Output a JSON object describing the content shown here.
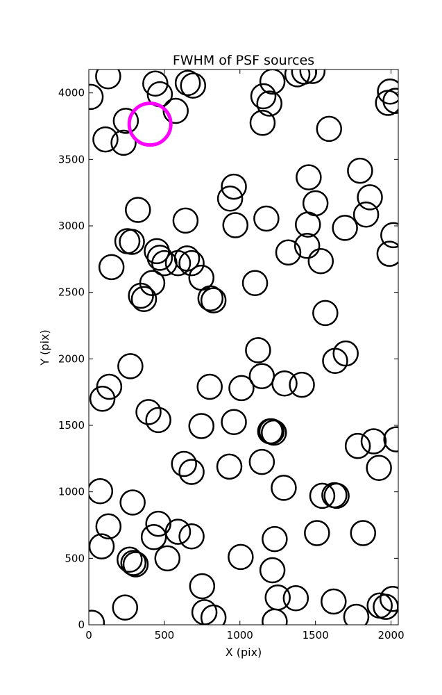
{
  "chart_data": {
    "type": "scatter",
    "title": "FWHM of PSF sources",
    "xlabel": "X (pix)",
    "ylabel": "Y (pix)",
    "xlim": [
      0,
      2048
    ],
    "ylim": [
      0,
      4176
    ],
    "xticks": [
      0,
      500,
      1000,
      1500,
      2000
    ],
    "xtick_labels": [
      "0",
      "500",
      "1000",
      "1500",
      "2000"
    ],
    "yticks": [
      0,
      500,
      1000,
      1500,
      2000,
      2500,
      3000,
      3500,
      4000
    ],
    "ytick_labels": [
      "0",
      "500",
      "1000",
      "1500",
      "2000",
      "2500",
      "3000",
      "3500",
      "4000"
    ],
    "grid": false,
    "marker": "open-circle",
    "series": [
      {
        "color": "#000000",
        "points": [
          [
            12,
            3970
          ],
          [
            128,
            4125
          ],
          [
            440,
            4070
          ],
          [
            470,
            3990
          ],
          [
            655,
            4075
          ],
          [
            690,
            4055
          ],
          [
            1380,
            4140
          ],
          [
            1155,
            3975
          ],
          [
            1215,
            4085
          ],
          [
            1195,
            3920
          ],
          [
            1150,
            3775
          ],
          [
            1425,
            4160
          ],
          [
            1480,
            4165
          ],
          [
            1993,
            4010
          ],
          [
            1980,
            3925
          ],
          [
            2030,
            3940
          ],
          [
            575,
            3865
          ],
          [
            245,
            3790
          ],
          [
            110,
            3650
          ],
          [
            230,
            3625
          ],
          [
            1590,
            3730
          ],
          [
            1795,
            3415
          ],
          [
            960,
            3295
          ],
          [
            935,
            3205
          ],
          [
            1500,
            3170
          ],
          [
            1455,
            3365
          ],
          [
            1860,
            3215
          ],
          [
            1835,
            3085
          ],
          [
            325,
            3120
          ],
          [
            640,
            3040
          ],
          [
            970,
            3005
          ],
          [
            1175,
            3055
          ],
          [
            1450,
            3010
          ],
          [
            1695,
            2985
          ],
          [
            2015,
            2930
          ],
          [
            255,
            2885
          ],
          [
            285,
            2880
          ],
          [
            450,
            2810
          ],
          [
            470,
            2760
          ],
          [
            500,
            2720
          ],
          [
            590,
            2720
          ],
          [
            650,
            2755
          ],
          [
            680,
            2720
          ],
          [
            1320,
            2800
          ],
          [
            1445,
            2850
          ],
          [
            1535,
            2735
          ],
          [
            1990,
            2790
          ],
          [
            150,
            2690
          ],
          [
            745,
            2610
          ],
          [
            420,
            2570
          ],
          [
            345,
            2475
          ],
          [
            365,
            2450
          ],
          [
            805,
            2455
          ],
          [
            825,
            2440
          ],
          [
            1100,
            2570
          ],
          [
            1565,
            2345
          ],
          [
            1120,
            2065
          ],
          [
            1630,
            1985
          ],
          [
            1700,
            2040
          ],
          [
            275,
            1945
          ],
          [
            135,
            1790
          ],
          [
            90,
            1700
          ],
          [
            800,
            1790
          ],
          [
            1010,
            1780
          ],
          [
            1145,
            1870
          ],
          [
            1295,
            1815
          ],
          [
            1410,
            1805
          ],
          [
            395,
            1600
          ],
          [
            460,
            1540
          ],
          [
            745,
            1495
          ],
          [
            960,
            1525
          ],
          [
            1200,
            1455
          ],
          [
            1210,
            1455
          ],
          [
            1225,
            1445
          ],
          [
            1780,
            1345
          ],
          [
            1885,
            1380
          ],
          [
            2035,
            1395
          ],
          [
            630,
            1210
          ],
          [
            680,
            1150
          ],
          [
            930,
            1190
          ],
          [
            1145,
            1225
          ],
          [
            1290,
            1030
          ],
          [
            1545,
            970
          ],
          [
            1625,
            975
          ],
          [
            1640,
            970
          ],
          [
            1920,
            1180
          ],
          [
            75,
            1005
          ],
          [
            290,
            920
          ],
          [
            130,
            740
          ],
          [
            460,
            760
          ],
          [
            430,
            660
          ],
          [
            590,
            700
          ],
          [
            680,
            665
          ],
          [
            1230,
            645
          ],
          [
            1510,
            690
          ],
          [
            1815,
            690
          ],
          [
            85,
            590
          ],
          [
            270,
            490
          ],
          [
            295,
            465
          ],
          [
            310,
            455
          ],
          [
            520,
            500
          ],
          [
            1005,
            510
          ],
          [
            1215,
            410
          ],
          [
            750,
            290
          ],
          [
            240,
            130
          ],
          [
            765,
            95
          ],
          [
            825,
            55
          ],
          [
            1250,
            205
          ],
          [
            1370,
            200
          ],
          [
            1620,
            175
          ],
          [
            1770,
            60
          ],
          [
            1925,
            145
          ],
          [
            1965,
            135
          ],
          [
            2010,
            195
          ],
          [
            1230,
            25
          ],
          [
            20,
            15
          ]
        ]
      },
      {
        "color": "#ff00ff",
        "points": [
          [
            405,
            3765
          ]
        ]
      }
    ]
  }
}
